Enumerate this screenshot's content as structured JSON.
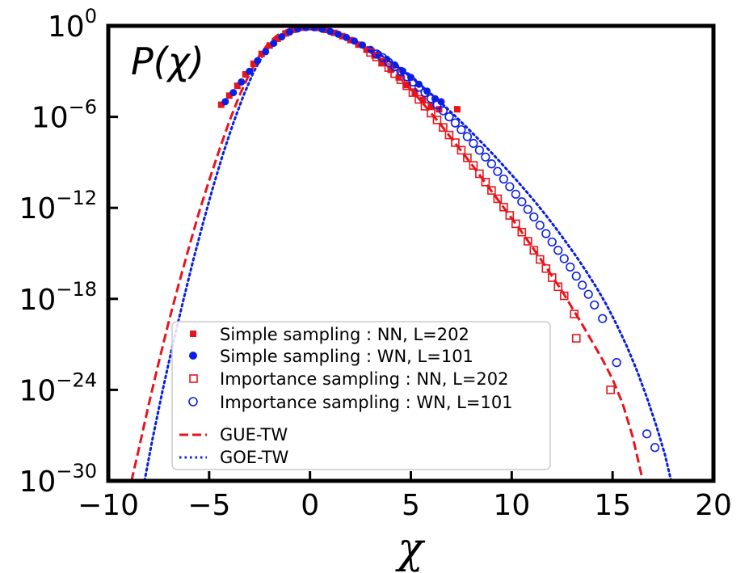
{
  "chart_data": {
    "type": "scatter",
    "title": "",
    "annotation": "P(χ)",
    "xlabel": "χ",
    "ylabel": "",
    "xlim": [
      -10,
      20
    ],
    "ylim_log10": [
      -30,
      0
    ],
    "y_scale": "log",
    "x_ticks": [
      {
        "value": -10,
        "label": "−10"
      },
      {
        "value": -5,
        "label": "−5"
      },
      {
        "value": 0,
        "label": "0"
      },
      {
        "value": 5,
        "label": "5"
      },
      {
        "value": 10,
        "label": "10"
      },
      {
        "value": 15,
        "label": "15"
      },
      {
        "value": 20,
        "label": "20"
      }
    ],
    "y_ticks": [
      {
        "exp": 0,
        "base": "10",
        "power": "0"
      },
      {
        "exp": -6,
        "base": "10",
        "power": "−6"
      },
      {
        "exp": -12,
        "base": "10",
        "power": "−12"
      },
      {
        "exp": -18,
        "base": "10",
        "power": "−18"
      },
      {
        "exp": -24,
        "base": "10",
        "power": "−24"
      },
      {
        "exp": -30,
        "base": "10",
        "power": "−30"
      }
    ],
    "legend_position": "lower-center",
    "series": [
      {
        "name": "Simple sampling : NN, L=202",
        "marker": "filled-square",
        "color": "#e8141c",
        "points": [
          [
            -4.4,
            -5.2
          ],
          [
            -4.0,
            -4.6
          ],
          [
            -3.6,
            -3.95
          ],
          [
            -3.2,
            -3.2
          ],
          [
            -2.8,
            -2.5
          ],
          [
            -2.4,
            -1.85
          ],
          [
            -2.0,
            -1.3
          ],
          [
            -1.6,
            -0.85
          ],
          [
            -1.2,
            -0.5
          ],
          [
            -0.8,
            -0.26
          ],
          [
            -0.4,
            -0.12
          ],
          [
            0.0,
            -0.09
          ],
          [
            0.4,
            -0.14
          ],
          [
            0.8,
            -0.27
          ],
          [
            1.2,
            -0.46
          ],
          [
            1.6,
            -0.68
          ],
          [
            2.0,
            -0.94
          ],
          [
            2.4,
            -1.24
          ],
          [
            2.8,
            -1.57
          ],
          [
            3.2,
            -1.95
          ],
          [
            3.6,
            -2.4
          ],
          [
            4.0,
            -2.9
          ],
          [
            4.4,
            -3.4
          ],
          [
            4.8,
            -3.9
          ],
          [
            5.2,
            -4.4
          ],
          [
            5.6,
            -4.9
          ],
          [
            6.0,
            -5.3
          ],
          [
            6.4,
            -5.5
          ],
          [
            7.3,
            -5.5
          ]
        ]
      },
      {
        "name": "Simple sampling : WN, L=101",
        "marker": "filled-circle",
        "color": "#0a1ee6",
        "points": [
          [
            -4.2,
            -5.0
          ],
          [
            -3.8,
            -4.4
          ],
          [
            -3.4,
            -3.7
          ],
          [
            -3.0,
            -3.0
          ],
          [
            -2.6,
            -2.3
          ],
          [
            -2.2,
            -1.7
          ],
          [
            -1.8,
            -1.15
          ],
          [
            -1.4,
            -0.72
          ],
          [
            -1.0,
            -0.4
          ],
          [
            -0.6,
            -0.2
          ],
          [
            -0.2,
            -0.11
          ],
          [
            0.2,
            -0.12
          ],
          [
            0.6,
            -0.22
          ],
          [
            1.0,
            -0.37
          ],
          [
            1.4,
            -0.55
          ],
          [
            1.8,
            -0.76
          ],
          [
            2.2,
            -1.0
          ],
          [
            2.6,
            -1.27
          ],
          [
            3.0,
            -1.55
          ],
          [
            3.4,
            -1.87
          ],
          [
            3.8,
            -2.2
          ],
          [
            4.2,
            -2.58
          ],
          [
            4.6,
            -2.98
          ],
          [
            5.0,
            -3.4
          ],
          [
            5.4,
            -3.85
          ],
          [
            5.8,
            -4.3
          ],
          [
            6.2,
            -4.8
          ],
          [
            6.5,
            -5.0
          ]
        ]
      },
      {
        "name": "Importance sampling : NN, L=202",
        "marker": "open-square",
        "color": "#e8141c",
        "points": [
          [
            3.0,
            -1.75
          ],
          [
            3.3,
            -2.05
          ],
          [
            3.6,
            -2.4
          ],
          [
            3.9,
            -2.75
          ],
          [
            4.2,
            -3.15
          ],
          [
            4.5,
            -3.55
          ],
          [
            4.8,
            -3.95
          ],
          [
            5.1,
            -4.4
          ],
          [
            5.4,
            -4.85
          ],
          [
            5.7,
            -5.3
          ],
          [
            6.0,
            -5.75
          ],
          [
            6.3,
            -6.2
          ],
          [
            6.6,
            -6.7
          ],
          [
            6.9,
            -7.2
          ],
          [
            7.2,
            -7.7
          ],
          [
            7.5,
            -8.2
          ],
          [
            7.8,
            -8.7
          ],
          [
            8.1,
            -9.2
          ],
          [
            8.4,
            -9.75
          ],
          [
            8.7,
            -10.3
          ],
          [
            9.0,
            -10.85
          ],
          [
            9.3,
            -11.4
          ],
          [
            9.6,
            -11.95
          ],
          [
            9.9,
            -12.5
          ],
          [
            10.2,
            -13.05
          ],
          [
            10.5,
            -13.6
          ],
          [
            10.8,
            -14.2
          ],
          [
            11.1,
            -14.8
          ],
          [
            11.4,
            -15.4
          ],
          [
            11.7,
            -16.0
          ],
          [
            12.0,
            -16.6
          ],
          [
            12.3,
            -17.2
          ],
          [
            12.6,
            -17.8
          ],
          [
            13.1,
            -19.0
          ],
          [
            13.2,
            -20.6
          ],
          [
            14.9,
            -24.0
          ]
        ]
      },
      {
        "name": "Importance sampling : WN, L=101",
        "marker": "open-circle",
        "color": "#0a1ee6",
        "points": [
          [
            3.3,
            -1.85
          ],
          [
            3.6,
            -2.1
          ],
          [
            3.9,
            -2.4
          ],
          [
            4.2,
            -2.7
          ],
          [
            4.5,
            -3.0
          ],
          [
            4.8,
            -3.35
          ],
          [
            5.1,
            -3.7
          ],
          [
            5.4,
            -4.05
          ],
          [
            5.7,
            -4.4
          ],
          [
            6.0,
            -4.8
          ],
          [
            6.3,
            -5.2
          ],
          [
            6.6,
            -5.6
          ],
          [
            6.9,
            -6.0
          ],
          [
            7.2,
            -6.4
          ],
          [
            7.5,
            -6.85
          ],
          [
            7.8,
            -7.3
          ],
          [
            8.1,
            -7.75
          ],
          [
            8.4,
            -8.2
          ],
          [
            8.7,
            -8.65
          ],
          [
            9.0,
            -9.1
          ],
          [
            9.3,
            -9.6
          ],
          [
            9.6,
            -10.1
          ],
          [
            9.9,
            -10.6
          ],
          [
            10.2,
            -11.1
          ],
          [
            10.5,
            -11.6
          ],
          [
            10.8,
            -12.1
          ],
          [
            11.1,
            -12.6
          ],
          [
            11.4,
            -13.15
          ],
          [
            11.7,
            -13.7
          ],
          [
            12.0,
            -14.25
          ],
          [
            12.3,
            -14.8
          ],
          [
            12.6,
            -15.35
          ],
          [
            12.9,
            -15.9
          ],
          [
            13.2,
            -16.5
          ],
          [
            13.5,
            -17.1
          ],
          [
            13.8,
            -17.7
          ],
          [
            14.1,
            -18.4
          ],
          [
            14.5,
            -19.3
          ],
          [
            15.2,
            -22.2
          ],
          [
            16.7,
            -26.9
          ],
          [
            17.1,
            -27.8
          ]
        ]
      }
    ],
    "curves": [
      {
        "name": "GUE-TW",
        "style": "dashed",
        "color": "#e8141c",
        "points": [
          [
            -8.85,
            -30
          ],
          [
            -8.5,
            -28.0
          ],
          [
            -8.0,
            -25.0
          ],
          [
            -7.5,
            -22.2
          ],
          [
            -7.0,
            -19.5
          ],
          [
            -6.5,
            -17.0
          ],
          [
            -6.0,
            -14.6
          ],
          [
            -5.5,
            -12.3
          ],
          [
            -5.0,
            -10.2
          ],
          [
            -4.5,
            -8.2
          ],
          [
            -4.0,
            -6.3
          ],
          [
            -3.5,
            -4.6
          ],
          [
            -3.0,
            -3.15
          ],
          [
            -2.5,
            -1.95
          ],
          [
            -2.0,
            -1.05
          ],
          [
            -1.5,
            -0.5
          ],
          [
            -1.0,
            -0.2
          ],
          [
            -0.5,
            -0.08
          ],
          [
            0.0,
            -0.1
          ],
          [
            0.5,
            -0.22
          ],
          [
            1.0,
            -0.42
          ],
          [
            1.5,
            -0.68
          ],
          [
            2.0,
            -0.98
          ],
          [
            2.5,
            -1.33
          ],
          [
            3.0,
            -1.75
          ],
          [
            3.5,
            -2.25
          ],
          [
            4.0,
            -2.85
          ],
          [
            4.5,
            -3.5
          ],
          [
            5.0,
            -4.2
          ],
          [
            5.5,
            -4.95
          ],
          [
            6.0,
            -5.75
          ],
          [
            6.5,
            -6.55
          ],
          [
            7.0,
            -7.4
          ],
          [
            7.5,
            -8.25
          ],
          [
            8.0,
            -9.1
          ],
          [
            8.5,
            -10.0
          ],
          [
            9.0,
            -10.9
          ],
          [
            9.5,
            -11.8
          ],
          [
            10.0,
            -12.7
          ],
          [
            10.5,
            -13.6
          ],
          [
            11.0,
            -14.55
          ],
          [
            11.5,
            -15.5
          ],
          [
            12.0,
            -16.5
          ],
          [
            12.5,
            -17.5
          ],
          [
            13.0,
            -18.6
          ],
          [
            13.5,
            -19.7
          ],
          [
            14.0,
            -20.85
          ],
          [
            14.5,
            -22.0
          ],
          [
            15.0,
            -23.3
          ],
          [
            15.5,
            -24.9
          ],
          [
            16.0,
            -27.1
          ],
          [
            16.5,
            -30
          ]
        ]
      },
      {
        "name": "GOE-TW",
        "style": "dotted",
        "color": "#0a1ee6",
        "points": [
          [
            -8.2,
            -30
          ],
          [
            -7.8,
            -27.2
          ],
          [
            -7.3,
            -24.0
          ],
          [
            -6.8,
            -21.0
          ],
          [
            -6.3,
            -18.2
          ],
          [
            -5.8,
            -15.5
          ],
          [
            -5.3,
            -13.0
          ],
          [
            -4.8,
            -10.6
          ],
          [
            -4.3,
            -8.4
          ],
          [
            -3.8,
            -6.4
          ],
          [
            -3.3,
            -4.6
          ],
          [
            -2.8,
            -3.05
          ],
          [
            -2.3,
            -1.85
          ],
          [
            -1.8,
            -1.0
          ],
          [
            -1.3,
            -0.48
          ],
          [
            -0.8,
            -0.2
          ],
          [
            -0.3,
            -0.1
          ],
          [
            0.2,
            -0.12
          ],
          [
            0.7,
            -0.25
          ],
          [
            1.2,
            -0.45
          ],
          [
            1.7,
            -0.7
          ],
          [
            2.2,
            -0.98
          ],
          [
            2.7,
            -1.3
          ],
          [
            3.2,
            -1.67
          ],
          [
            3.7,
            -2.1
          ],
          [
            4.2,
            -2.57
          ],
          [
            4.7,
            -3.07
          ],
          [
            5.2,
            -3.6
          ],
          [
            5.7,
            -4.15
          ],
          [
            6.2,
            -4.72
          ],
          [
            6.7,
            -5.32
          ],
          [
            7.2,
            -5.95
          ],
          [
            7.7,
            -6.6
          ],
          [
            8.2,
            -7.27
          ],
          [
            8.7,
            -7.95
          ],
          [
            9.2,
            -8.65
          ],
          [
            9.7,
            -9.38
          ],
          [
            10.2,
            -10.12
          ],
          [
            10.7,
            -10.88
          ],
          [
            11.2,
            -11.67
          ],
          [
            11.7,
            -12.5
          ],
          [
            12.2,
            -13.37
          ],
          [
            12.7,
            -14.27
          ],
          [
            13.2,
            -15.2
          ],
          [
            13.7,
            -16.2
          ],
          [
            14.2,
            -17.25
          ],
          [
            14.7,
            -18.4
          ],
          [
            15.2,
            -19.7
          ],
          [
            15.7,
            -21.1
          ],
          [
            16.2,
            -22.7
          ],
          [
            16.7,
            -24.5
          ],
          [
            17.2,
            -26.5
          ],
          [
            17.6,
            -28.3
          ],
          [
            17.9,
            -30
          ]
        ]
      }
    ]
  }
}
